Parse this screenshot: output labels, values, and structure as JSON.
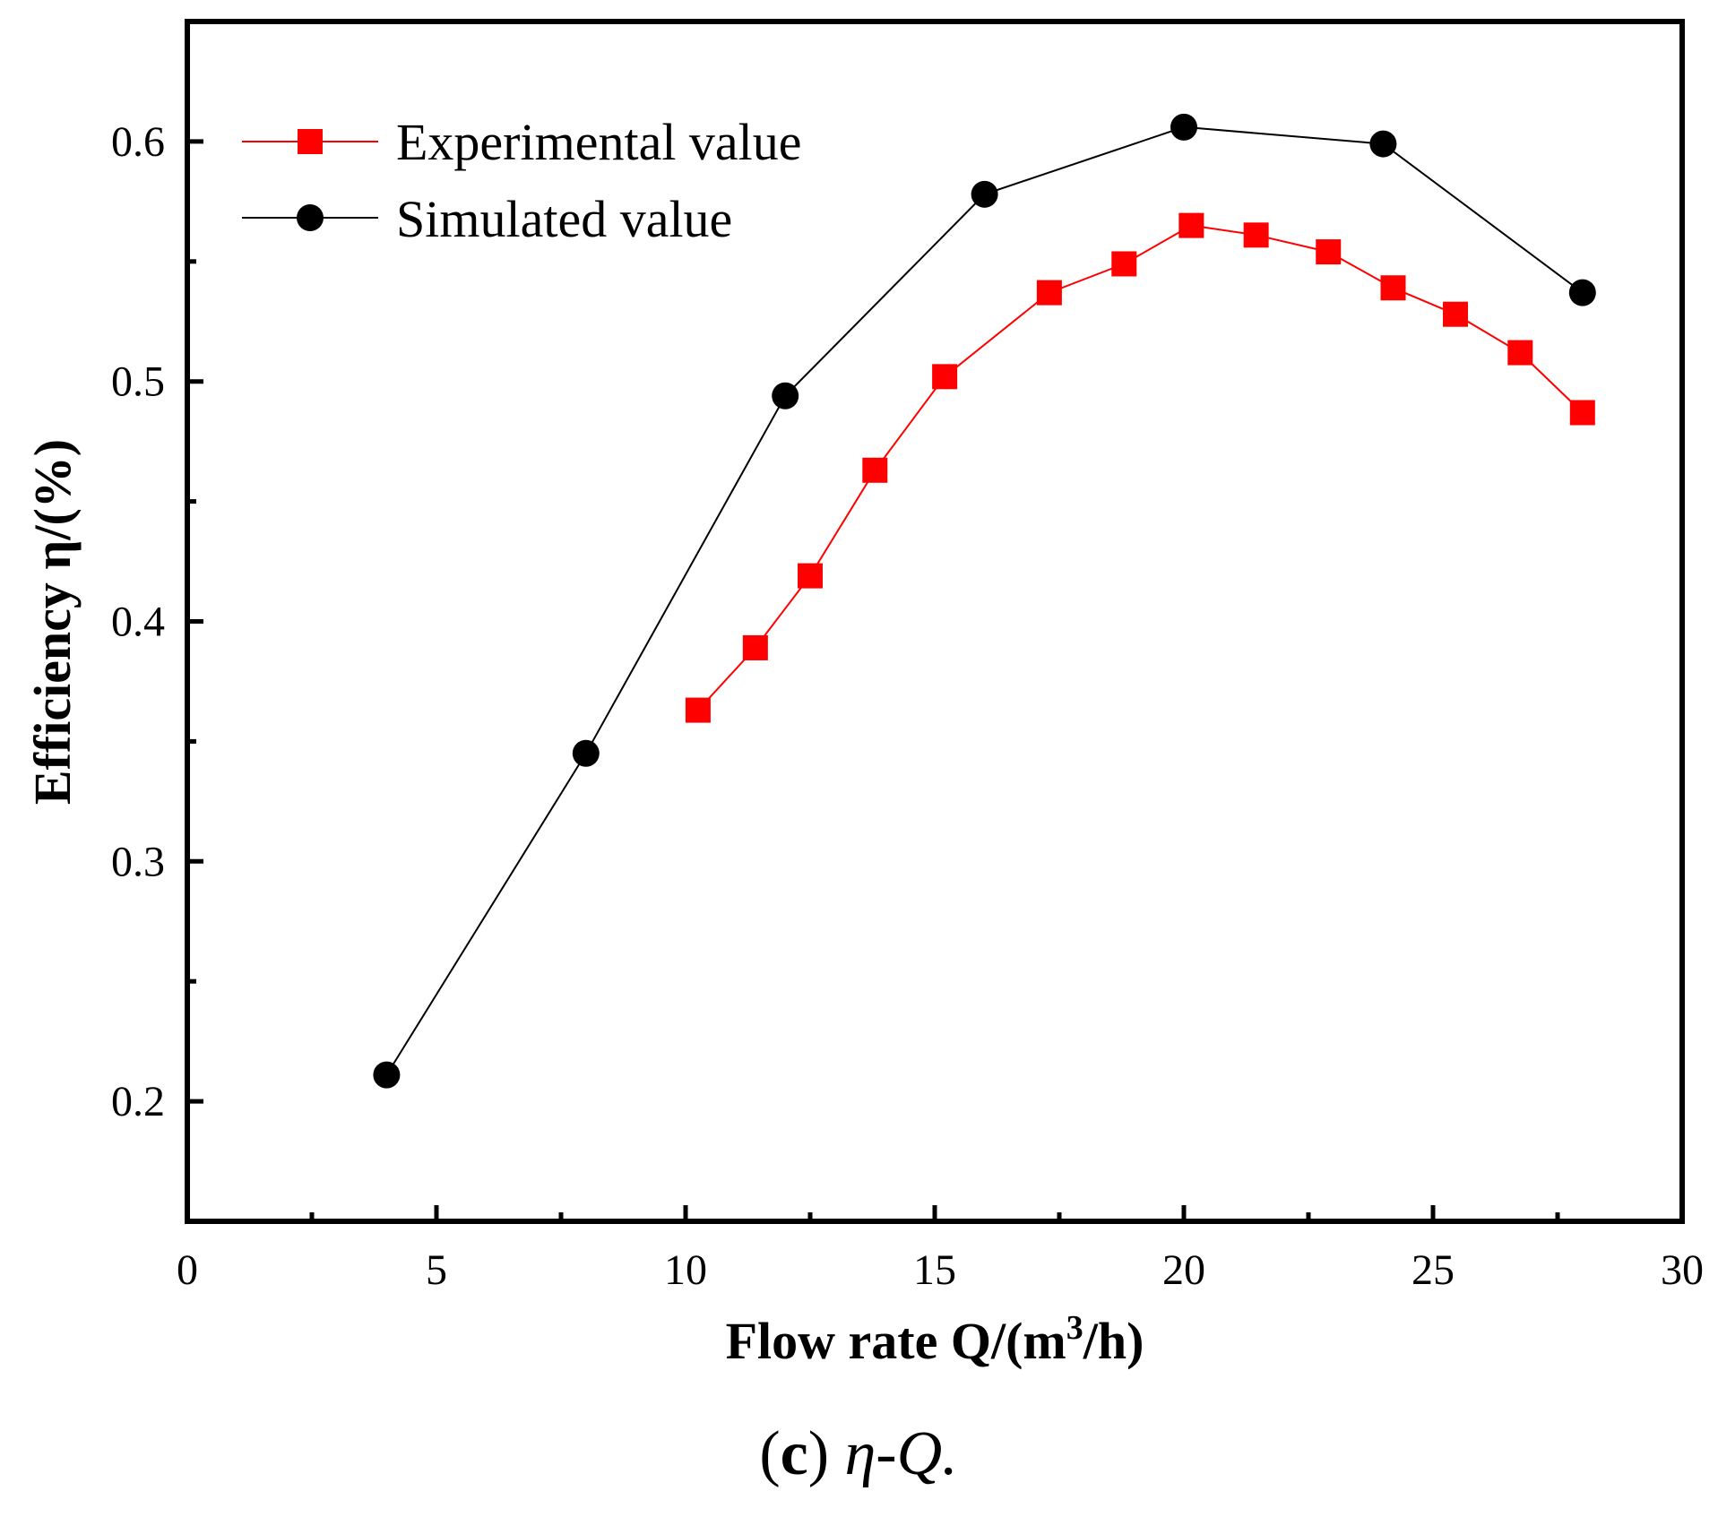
{
  "chart_data": {
    "type": "line",
    "xlabel": "Flow rate Q/(m",
    "xlabel_sup": "3",
    "xlabel_end": "/h)",
    "ylabel": "Efficiency η/(%)",
    "xlim": [
      0,
      30
    ],
    "ylim": [
      0.15,
      0.65
    ],
    "x_ticks": [
      0,
      5,
      10,
      15,
      20,
      25,
      30
    ],
    "x_tick_labels": [
      "0",
      "5",
      "10",
      "15",
      "20",
      "25",
      "30"
    ],
    "y_ticks": [
      0.2,
      0.3,
      0.4,
      0.5,
      0.6
    ],
    "y_tick_labels": [
      "0.2",
      "0.3",
      "0.4",
      "0.5",
      "0.6"
    ],
    "grid": false,
    "legend_position": "top-left",
    "series": [
      {
        "name": "Experimental value",
        "color": "#ff0000",
        "marker": "square",
        "x": [
          10.25,
          11.4,
          12.5,
          13.8,
          15.2,
          17.3,
          18.8,
          20.15,
          21.45,
          22.9,
          24.2,
          25.45,
          26.75,
          28.0
        ],
        "y": [
          0.363,
          0.389,
          0.419,
          0.463,
          0.502,
          0.537,
          0.549,
          0.565,
          0.561,
          0.554,
          0.539,
          0.528,
          0.512,
          0.487
        ]
      },
      {
        "name": "Simulated value",
        "color": "#000000",
        "marker": "circle",
        "x": [
          4,
          8,
          12,
          16,
          20,
          24,
          28
        ],
        "y": [
          0.211,
          0.345,
          0.494,
          0.578,
          0.606,
          0.599,
          0.537
        ]
      }
    ]
  },
  "caption": {
    "letter": "c",
    "text": "η-Q."
  }
}
